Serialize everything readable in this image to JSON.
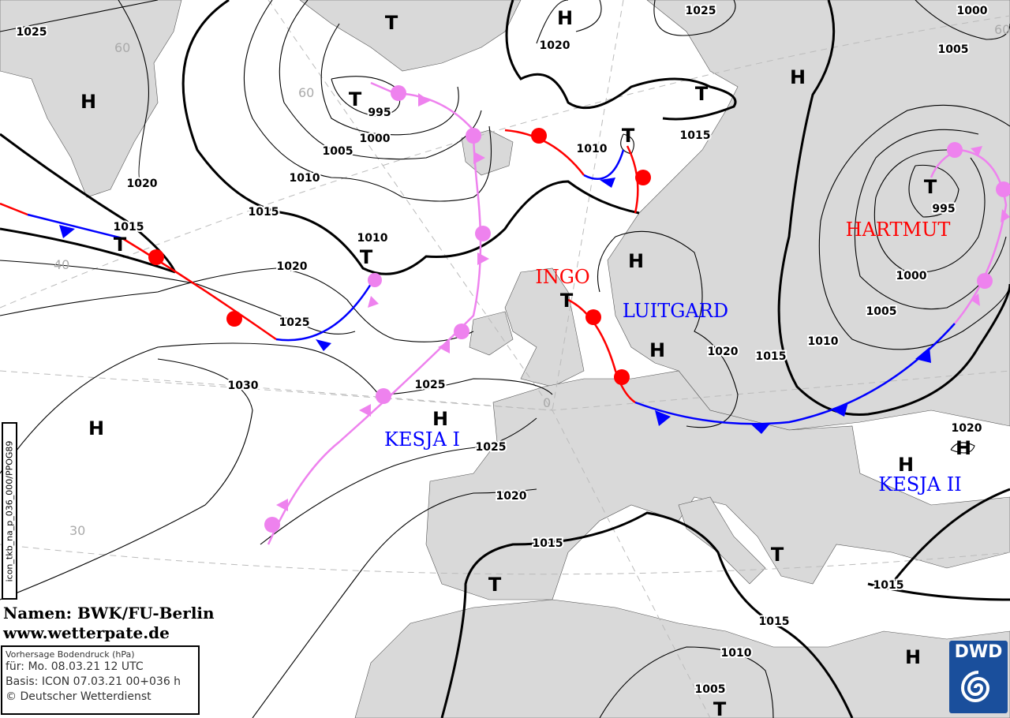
{
  "map": {
    "credit_line1": "Namen: BWK/FU-Berlin",
    "credit_line2": "www.wetterpate.de",
    "info": {
      "title": "Vorhersage Bodendruck (hPa)",
      "valid": "für:  Mo. 08.03.21  12 UTC",
      "base": "Basis: ICON  07.03.21 00+036 h",
      "copyright": "© Deutscher Wetterdienst"
    },
    "product_code": "icon_tkb_na_p_036_000/PPOG89",
    "logo_text": "DWD",
    "colors": {
      "land": "#d9d9d9",
      "sea": "#ffffff",
      "warm_front": "#ff0000",
      "cold_front": "#0000ff",
      "occlusion": "#ee82ee"
    },
    "isobar_labels": [
      "1025",
      "1020",
      "1015",
      "1030",
      "1025",
      "1020",
      "1015",
      "1010",
      "1005",
      "1000",
      "995",
      "1010",
      "1025",
      "1025",
      "1020",
      "1015",
      "1020",
      "1025",
      "1010",
      "1015",
      "1000",
      "1005",
      "995",
      "1000",
      "1005",
      "1010",
      "1015",
      "1020",
      "1020",
      "1015",
      "1015",
      "1010",
      "1005"
    ],
    "pressure_centers": [
      "H",
      "H",
      "H",
      "H",
      "H",
      "H",
      "H",
      "H",
      "H",
      "H",
      "T",
      "T",
      "T",
      "T",
      "T",
      "T",
      "T",
      "T",
      "T",
      "T",
      "T"
    ],
    "latitude_labels": [
      "60",
      "60",
      "60",
      "40",
      "30",
      "0"
    ],
    "systems": [
      {
        "name": "INGO",
        "color": "#ff0000"
      },
      {
        "name": "HARTMUT",
        "color": "#ff0000"
      },
      {
        "name": "LUITGARD",
        "color": "#0000ff"
      },
      {
        "name": "KESJA I",
        "color": "#0000ff"
      },
      {
        "name": "KESJA II",
        "color": "#0000ff"
      }
    ]
  }
}
